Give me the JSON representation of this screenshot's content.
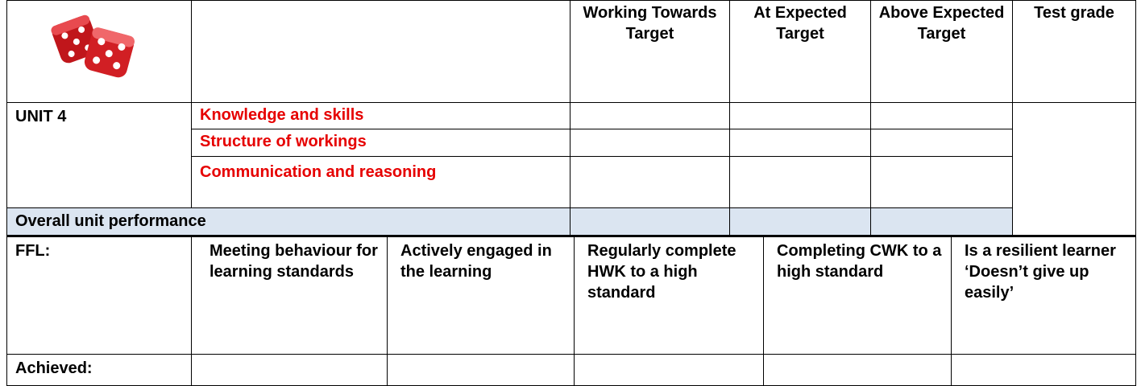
{
  "header": {
    "columns": [
      "Working Towards Target",
      "At Expected Target",
      "Above Expected Target",
      "Test grade"
    ]
  },
  "unit": {
    "label": "UNIT 4",
    "criteria": [
      "Knowledge and skills",
      "Structure of workings",
      "Communication and reasoning"
    ],
    "overall": "Overall unit performance"
  },
  "ffl": {
    "label": "FFL:",
    "items": [
      "Meeting behaviour for learning standards",
      "Actively engaged in the learning",
      "Regularly complete HWK to a high standard",
      "Completing CWK to a high standard",
      "Is a resilient learner ‘Doesn’t give up easily’"
    ],
    "achieved": "Achieved:"
  }
}
